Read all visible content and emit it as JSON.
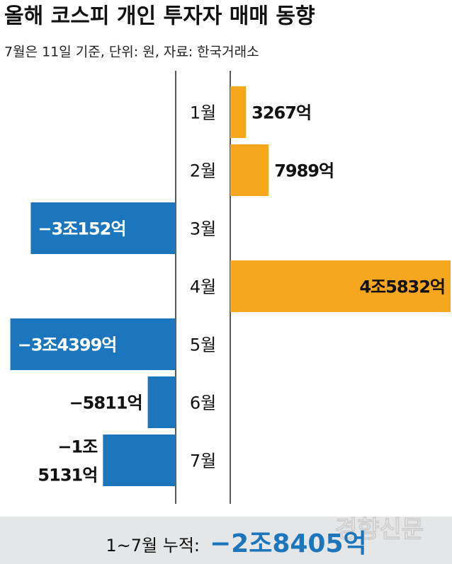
{
  "chart_data": {
    "type": "bar",
    "title": "올해 코스피 개인 투자자 매매 동향",
    "subtitle": "7월은 11일 기준, 단위: 원, 자료: 한국거래소",
    "categories": [
      "1월",
      "2월",
      "3월",
      "4월",
      "5월",
      "6월",
      "7월"
    ],
    "values": [
      3267,
      7989,
      -30152,
      45832,
      -34399,
      -5811,
      -15131
    ],
    "value_labels": [
      "3267억",
      "7989억",
      "−3조152억",
      "4조5832억",
      "−3조4399억",
      "−5811억",
      "−1조 5131억"
    ],
    "positive_color": "#f6a71e",
    "negative_color": "#1b76bd",
    "total_label": "1~7월 누적:",
    "total": -28405,
    "total_value_label": "−2조8405억",
    "source": "경향신문"
  }
}
